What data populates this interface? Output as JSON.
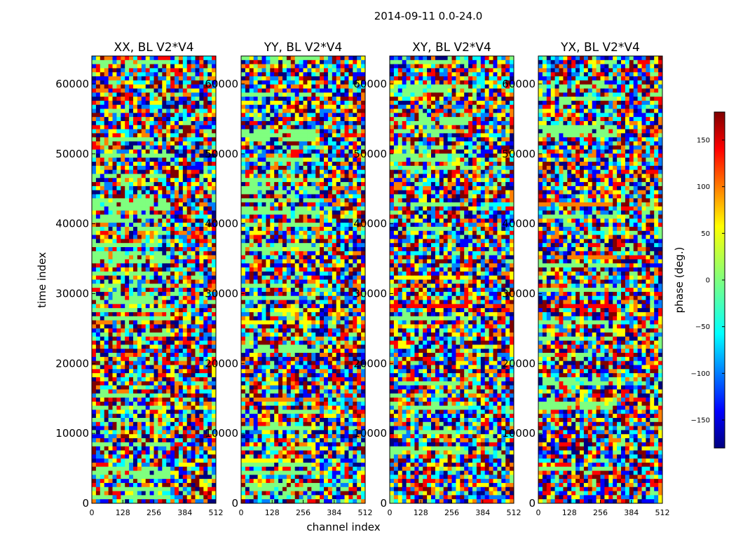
{
  "figure_title": "2014-09-11 0.0-24.0",
  "colormap": [
    "#00007f",
    "#0000ff",
    "#007fff",
    "#00ffff",
    "#7fff7f",
    "#ffff00",
    "#ff7f00",
    "#ff0000",
    "#7f0000"
  ],
  "chart_data": {
    "type": "heatmap",
    "title": "2014-09-11 0.0-24.0",
    "xlabel": "channel index",
    "ylabel": "time index",
    "xlim": [
      0,
      512
    ],
    "ylim": [
      0,
      64000
    ],
    "xticks": [
      0,
      128,
      256,
      384,
      512
    ],
    "yticks": [
      0,
      10000,
      20000,
      30000,
      40000,
      50000,
      60000
    ],
    "panels": [
      {
        "title": "XX, BL V2*V4"
      },
      {
        "title": "YY, BL V2*V4"
      },
      {
        "title": "XY, BL V2*V4"
      },
      {
        "title": "YX, BL V2*V4"
      }
    ],
    "colorbar": {
      "label": "phase (deg.)",
      "range": [
        -180,
        180
      ],
      "ticks": [
        150,
        100,
        50,
        0,
        -50,
        -100,
        -150
      ],
      "tick_labels": [
        "150",
        "100",
        "50",
        "0",
        "−50",
        "−100",
        "−150"
      ]
    }
  }
}
